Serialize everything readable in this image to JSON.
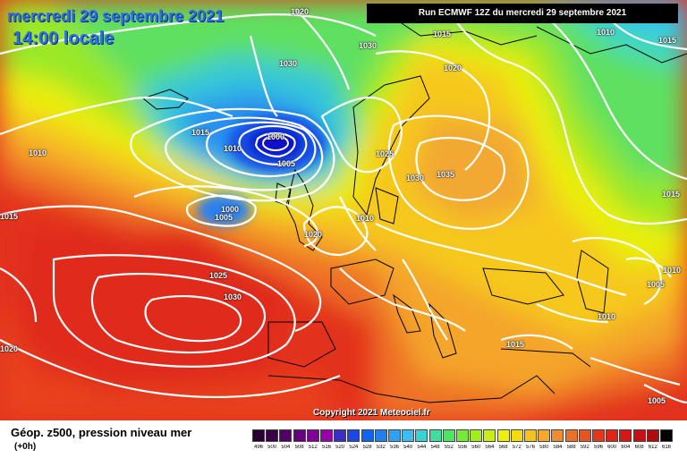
{
  "header": {
    "date": "mercredi 29 septembre 2021",
    "time": "14:00 locale",
    "run": "Run ECMWF 12Z du mercredi 29 septembre 2021"
  },
  "map": {
    "copyright": "Copyright 2021 Meteociel.fr",
    "isobar_labels": [
      {
        "text": "1020",
        "area": "north-atlantic-top"
      },
      {
        "text": "1030",
        "area": "greenland"
      },
      {
        "text": "1015",
        "area": "iceland-south"
      },
      {
        "text": "1010",
        "area": "atlantic-west"
      },
      {
        "text": "1010",
        "area": "low-ring-outer"
      },
      {
        "text": "1000",
        "area": "low-centre"
      },
      {
        "text": "1005",
        "area": "low-ring"
      },
      {
        "text": "1000",
        "area": "atlantic-secondary-low"
      },
      {
        "text": "1005",
        "area": "atlantic-secondary-ring"
      },
      {
        "text": "1015",
        "area": "atlantic-far-west"
      },
      {
        "text": "1025",
        "area": "azores-north"
      },
      {
        "text": "1030",
        "area": "azores-core"
      },
      {
        "text": "1020",
        "area": "bay-of-biscay-west"
      },
      {
        "text": "1020",
        "area": "uk-south"
      },
      {
        "text": "1010",
        "area": "north-sea"
      },
      {
        "text": "1025",
        "area": "scandinavia"
      },
      {
        "text": "1030",
        "area": "baltic"
      },
      {
        "text": "1035",
        "area": "russia-west"
      },
      {
        "text": "1030",
        "area": "svalbard"
      },
      {
        "text": "1015",
        "area": "barents-sea"
      },
      {
        "text": "1020",
        "area": "russia-north"
      },
      {
        "text": "1010",
        "area": "ural-north"
      },
      {
        "text": "1015",
        "area": "siberia-north"
      },
      {
        "text": "1015",
        "area": "siberia-east"
      },
      {
        "text": "1010",
        "area": "caspian-north"
      },
      {
        "text": "1005",
        "area": "caspian"
      },
      {
        "text": "1010",
        "area": "turkey-east"
      },
      {
        "text": "1015",
        "area": "black-sea"
      },
      {
        "text": "1005",
        "area": "middle-east"
      }
    ]
  },
  "legend": {
    "parameter": "Géop. z500, pression niveau mer",
    "step": "(+0h)",
    "scale_labels": [
      "496",
      "500",
      "504",
      "508",
      "512",
      "516",
      "520",
      "524",
      "528",
      "532",
      "536",
      "540",
      "544",
      "548",
      "552",
      "556",
      "560",
      "564",
      "568",
      "572",
      "576",
      "580",
      "584",
      "588",
      "592",
      "596",
      "600",
      "604",
      "608",
      "612",
      "616"
    ],
    "scale_colors": [
      "#2a0030",
      "#3a0048",
      "#500064",
      "#68007c",
      "#800094",
      "#9800ac",
      "#3c2cc8",
      "#1e46e6",
      "#1064f0",
      "#2080f0",
      "#30a0f0",
      "#3cbcf0",
      "#38d2d2",
      "#40dca0",
      "#50e464",
      "#78ea32",
      "#a0ec1e",
      "#c8ee14",
      "#ecf00c",
      "#f4dc0c",
      "#f4c41c",
      "#f4a82c",
      "#f08c30",
      "#ec7028",
      "#e85420",
      "#e4381c",
      "#e02418",
      "#d61814",
      "#c81014",
      "#b00c10",
      "#000000"
    ]
  },
  "colors": {
    "low_core": "#1010c8",
    "high_core": "#e3321e",
    "title_blue": "#2f6fe3",
    "isobar": "#ffffff"
  }
}
